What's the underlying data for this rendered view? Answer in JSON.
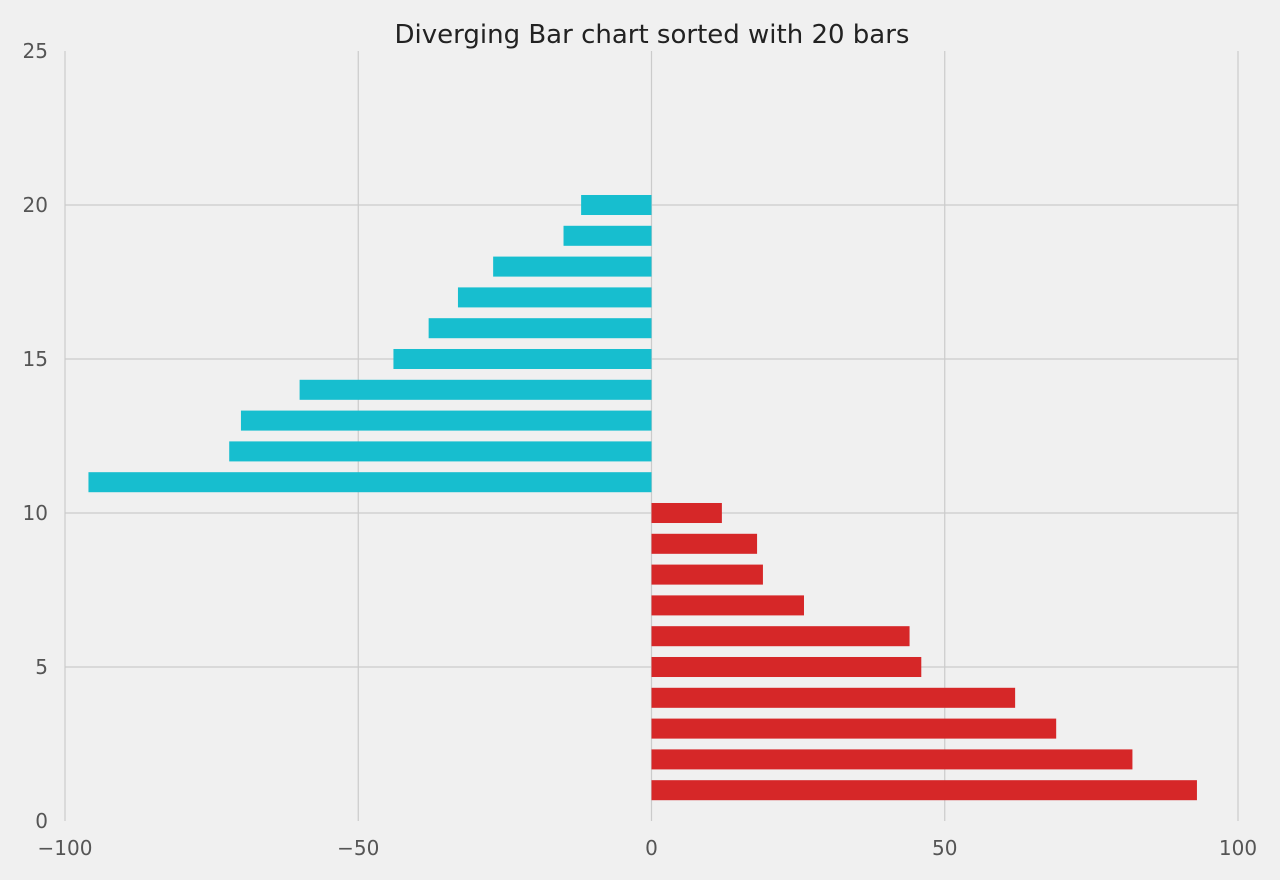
{
  "chart_data": {
    "type": "bar",
    "orientation": "horizontal",
    "title": "Diverging Bar chart sorted with 20 bars",
    "xlabel": "",
    "ylabel": "",
    "xlim": [
      -100,
      100
    ],
    "ylim": [
      0,
      25
    ],
    "x_ticks": [
      -100,
      -50,
      0,
      50,
      100
    ],
    "x_tick_labels": [
      "−100",
      "−50",
      "0",
      "50",
      "100"
    ],
    "y_ticks": [
      0,
      5,
      10,
      15,
      20,
      25
    ],
    "y_tick_labels": [
      "0",
      "5",
      "10",
      "15",
      "20",
      "25"
    ],
    "grid": true,
    "legend": "none",
    "positions": [
      1,
      2,
      3,
      4,
      5,
      6,
      7,
      8,
      9,
      10,
      11,
      12,
      13,
      14,
      15,
      16,
      17,
      18,
      19,
      20
    ],
    "values": [
      93,
      82,
      69,
      62,
      46,
      44,
      26,
      19,
      18,
      12,
      -96,
      -72,
      -70,
      -60,
      -44,
      -38,
      -33,
      -27,
      -15,
      -12
    ],
    "colors": {
      "positive": "#d62728",
      "negative": "#17becf",
      "grid": "#cbcbcb",
      "background": "#f0f0f0"
    }
  }
}
